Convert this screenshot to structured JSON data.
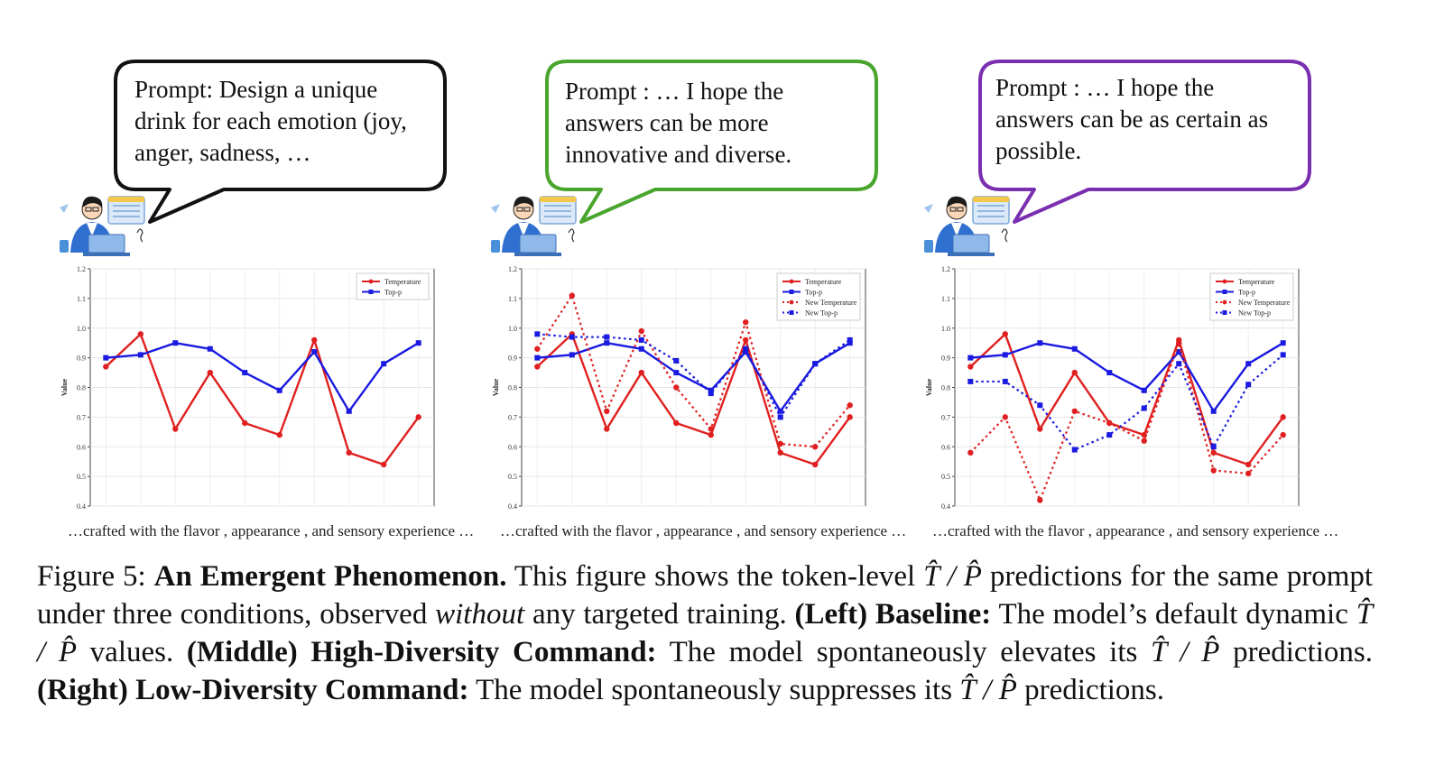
{
  "panels": [
    {
      "id": "left",
      "bubble_text": [
        "Prompt: Design a unique",
        "drink for each emotion (joy,",
        "anger, sadness, …"
      ],
      "bubble_color": "#111111",
      "x_caption": "…crafted with the flavor , appearance , and sensory experience …"
    },
    {
      "id": "middle",
      "bubble_text": [
        "Prompt : … I hope the",
        "answers can be more",
        "innovative and diverse."
      ],
      "bubble_color": "#4aa52e",
      "x_caption": "…crafted with the flavor , appearance , and sensory experience …"
    },
    {
      "id": "right",
      "bubble_text": [
        "Prompt : … I hope the",
        "answers can be as certain as",
        "possible."
      ],
      "bubble_color": "#7a2fb0",
      "x_caption": "…crafted with the flavor , appearance , and sensory experience …"
    }
  ],
  "chart_data": [
    {
      "type": "line",
      "ylabel": "Value",
      "ylim": [
        0.4,
        1.2
      ],
      "yticks": [
        "0.4",
        "0.5",
        "0.6",
        "0.7",
        "0.8",
        "0.9",
        "1.0",
        "1.1",
        "1.2"
      ],
      "grid": true,
      "legend_position": "top-right",
      "x": [
        1,
        2,
        3,
        4,
        5,
        6,
        7,
        8,
        9,
        10
      ],
      "series": [
        {
          "name": "Temperature",
          "color": "#e02020",
          "style": "solid",
          "marker": "circle",
          "values": [
            0.87,
            0.98,
            0.66,
            0.85,
            0.68,
            0.64,
            0.96,
            0.58,
            0.54,
            0.7
          ]
        },
        {
          "name": "Top-p",
          "color": "#1a1ae0",
          "style": "solid",
          "marker": "square",
          "values": [
            0.9,
            0.91,
            0.95,
            0.93,
            0.85,
            0.79,
            0.92,
            0.72,
            0.88,
            0.95
          ]
        }
      ]
    },
    {
      "type": "line",
      "ylabel": "Value",
      "ylim": [
        0.4,
        1.2
      ],
      "yticks": [
        "0.4",
        "0.5",
        "0.6",
        "0.7",
        "0.8",
        "0.9",
        "1.0",
        "1.1",
        "1.2"
      ],
      "grid": true,
      "legend_position": "top-right",
      "x": [
        1,
        2,
        3,
        4,
        5,
        6,
        7,
        8,
        9,
        10
      ],
      "series": [
        {
          "name": "Temperature",
          "color": "#e02020",
          "style": "solid",
          "marker": "circle",
          "values": [
            0.87,
            0.98,
            0.66,
            0.85,
            0.68,
            0.64,
            0.96,
            0.58,
            0.54,
            0.7
          ]
        },
        {
          "name": "Top-p",
          "color": "#1a1ae0",
          "style": "solid",
          "marker": "square",
          "values": [
            0.9,
            0.91,
            0.95,
            0.93,
            0.85,
            0.79,
            0.92,
            0.72,
            0.88,
            0.95
          ]
        },
        {
          "name": "New Temperature",
          "color": "#e02020",
          "style": "dotted",
          "marker": "circle",
          "values": [
            0.93,
            1.11,
            0.72,
            0.99,
            0.8,
            0.66,
            1.02,
            0.61,
            0.6,
            0.74
          ]
        },
        {
          "name": "New Top-p",
          "color": "#1a1ae0",
          "style": "dotted",
          "marker": "square",
          "values": [
            0.98,
            0.97,
            0.97,
            0.96,
            0.89,
            0.78,
            0.93,
            0.7,
            0.88,
            0.96
          ]
        }
      ]
    },
    {
      "type": "line",
      "ylabel": "Value",
      "ylim": [
        0.4,
        1.2
      ],
      "yticks": [
        "0.4",
        "0.5",
        "0.6",
        "0.7",
        "0.8",
        "0.9",
        "1.0",
        "1.1",
        "1.2"
      ],
      "grid": true,
      "legend_position": "top-right",
      "x": [
        1,
        2,
        3,
        4,
        5,
        6,
        7,
        8,
        9,
        10
      ],
      "series": [
        {
          "name": "Temperature",
          "color": "#e02020",
          "style": "solid",
          "marker": "circle",
          "values": [
            0.87,
            0.98,
            0.66,
            0.85,
            0.68,
            0.64,
            0.96,
            0.58,
            0.54,
            0.7
          ]
        },
        {
          "name": "Top-p",
          "color": "#1a1ae0",
          "style": "solid",
          "marker": "square",
          "values": [
            0.9,
            0.91,
            0.95,
            0.93,
            0.85,
            0.79,
            0.92,
            0.72,
            0.88,
            0.95
          ]
        },
        {
          "name": "New Temperature",
          "color": "#e02020",
          "style": "dotted",
          "marker": "circle",
          "values": [
            0.58,
            0.7,
            0.42,
            0.72,
            0.68,
            0.62,
            0.95,
            0.52,
            0.51,
            0.64
          ]
        },
        {
          "name": "New Top-p",
          "color": "#1a1ae0",
          "style": "dotted",
          "marker": "square",
          "values": [
            0.82,
            0.82,
            0.74,
            0.59,
            0.64,
            0.73,
            0.88,
            0.6,
            0.81,
            0.91
          ]
        }
      ]
    }
  ],
  "caption": {
    "label": "Figure 5:",
    "title": "An Emergent Phenomenon.",
    "t1": "This figure shows the token-level",
    "symbol": "T̂ / P̂",
    "t2": "predictions for the same prompt under three conditions, observed",
    "emph": "without",
    "t3": "any targeted training.",
    "left_label": "(Left) Baseline:",
    "t4": "The model’s default dynamic",
    "t5": "values.",
    "middle_label": "(Middle) High-Diversity Command:",
    "t6": "The model spontaneously elevates its",
    "t7": "predictions.",
    "right_label": "(Right) Low-Diversity Command:",
    "t8": "The model spontaneously suppresses its",
    "t9": "predictions."
  }
}
